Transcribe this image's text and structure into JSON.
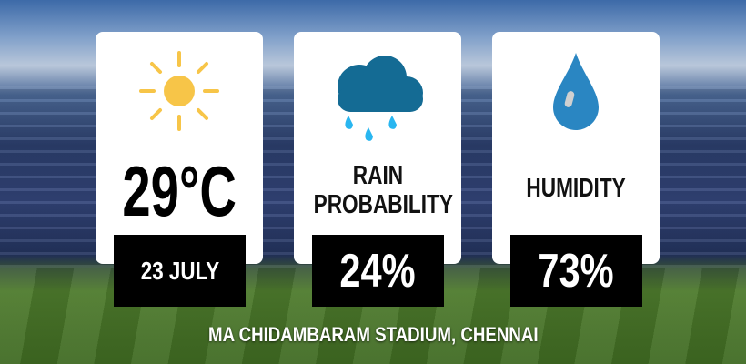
{
  "colors": {
    "sun": "#f7c548",
    "cloud": "#146b94",
    "raindrop": "#29b6f0",
    "humidity_drop": "#2a86c2",
    "card": "#ffffff",
    "value_box": "#000000"
  },
  "temperature": {
    "icon": "sun-icon",
    "value": "29°C",
    "date": "23 JULY"
  },
  "rain": {
    "icon": "rain-cloud-icon",
    "label_line1": "RAIN",
    "label_line2": "PROBABILITY",
    "value": "24%"
  },
  "humidity": {
    "icon": "water-drop-icon",
    "label": "HUMIDITY",
    "value": "73%"
  },
  "venue": "MA CHIDAMBARAM STADIUM, CHENNAI"
}
